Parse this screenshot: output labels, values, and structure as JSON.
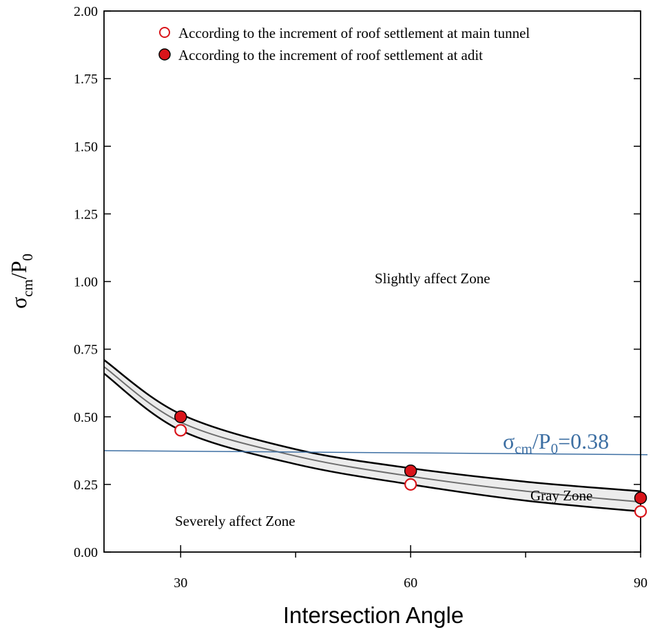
{
  "chart_data": {
    "type": "scatter",
    "xlabel": "Intersection Angle",
    "ylabel_main": "σ",
    "ylabel_sub1": "cm",
    "ylabel_mid": "/P",
    "ylabel_sub2": "0",
    "xlim": [
      20,
      90
    ],
    "ylim": [
      0,
      2.0
    ],
    "x_ticks": [
      30,
      60,
      90
    ],
    "x_minor_ticks": [
      45,
      75
    ],
    "y_ticks": [
      0.0,
      0.25,
      0.5,
      0.75,
      1.0,
      1.25,
      1.5,
      1.75,
      2.0
    ],
    "y_tick_labels": [
      "0.00",
      "0.25",
      "0.50",
      "0.75",
      "1.00",
      "1.25",
      "1.50",
      "1.75",
      "2.00"
    ],
    "x_tick_labels": [
      "30",
      "60",
      "90"
    ],
    "series": [
      {
        "name": "According to the increment of roof settlement at main tunnel",
        "marker": "open-circle",
        "x": [
          30,
          60,
          90
        ],
        "y": [
          0.45,
          0.25,
          0.15
        ]
      },
      {
        "name": "According to the increment of roof settlement at adit",
        "marker": "filled-circle",
        "x": [
          30,
          60,
          90
        ],
        "y": [
          0.5,
          0.3,
          0.2
        ]
      }
    ],
    "band": {
      "upper": [
        [
          20,
          0.71
        ],
        [
          30,
          0.51
        ],
        [
          45,
          0.38
        ],
        [
          60,
          0.31
        ],
        [
          75,
          0.26
        ],
        [
          90,
          0.225
        ]
      ],
      "middle": [
        [
          20,
          0.685
        ],
        [
          30,
          0.48
        ],
        [
          45,
          0.355
        ],
        [
          60,
          0.28
        ],
        [
          75,
          0.225
        ],
        [
          90,
          0.185
        ]
      ],
      "lower": [
        [
          20,
          0.66
        ],
        [
          30,
          0.45
        ],
        [
          45,
          0.325
        ],
        [
          60,
          0.25
        ],
        [
          75,
          0.19
        ],
        [
          90,
          0.15
        ]
      ]
    },
    "reference_line": {
      "y_start": 0.375,
      "y_end": 0.36
    },
    "annotations": {
      "reference_main": "σ",
      "reference_sub1": "cm",
      "reference_mid": "/P",
      "reference_sub2": "0",
      "reference_value": "=0.38",
      "slightly_zone": "Slightly affect Zone",
      "gray_zone": "Gray Zone",
      "severely_zone": "Severely affect Zone"
    },
    "colors": {
      "marker": "#d9141a",
      "reference": "#3d6fa3",
      "band_fill": "#ececec",
      "axis": "#000000"
    }
  }
}
